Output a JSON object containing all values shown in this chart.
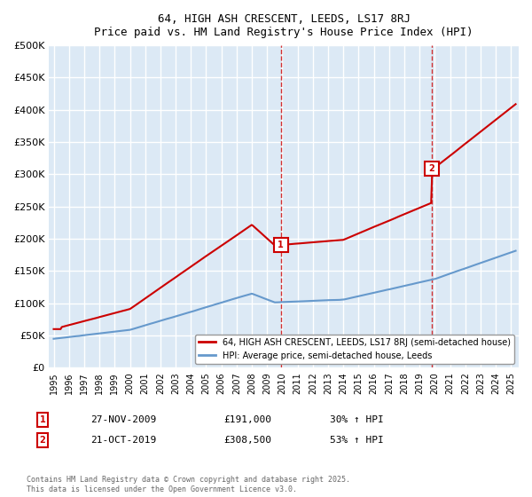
{
  "title": "64, HIGH ASH CRESCENT, LEEDS, LS17 8RJ",
  "subtitle": "Price paid vs. HM Land Registry's House Price Index (HPI)",
  "ylabel": "",
  "background_color": "#ffffff",
  "plot_bg_color": "#dce9f5",
  "grid_color": "#ffffff",
  "ylim": [
    0,
    500000
  ],
  "yticks": [
    0,
    50000,
    100000,
    150000,
    200000,
    250000,
    300000,
    350000,
    400000,
    450000,
    500000
  ],
  "xlim_start": 1995.0,
  "xlim_end": 2025.5,
  "sale1_date": 2009.9,
  "sale1_price": 191000,
  "sale1_label": "1",
  "sale1_text": "27-NOV-2009    £191,000    30% ↑ HPI",
  "sale2_date": 2019.8,
  "sale2_price": 308500,
  "sale2_label": "2",
  "sale2_text": "21-OCT-2019    £308,500    53% ↑ HPI",
  "legend_line1": "64, HIGH ASH CRESCENT, LEEDS, LS17 8RJ (semi-detached house)",
  "legend_line2": "HPI: Average price, semi-detached house, Leeds",
  "footnote": "Contains HM Land Registry data © Crown copyright and database right 2025.\nThis data is licensed under the Open Government Licence v3.0.",
  "red_line_color": "#cc0000",
  "blue_line_color": "#6699cc",
  "marker_box_color": "#cc0000"
}
